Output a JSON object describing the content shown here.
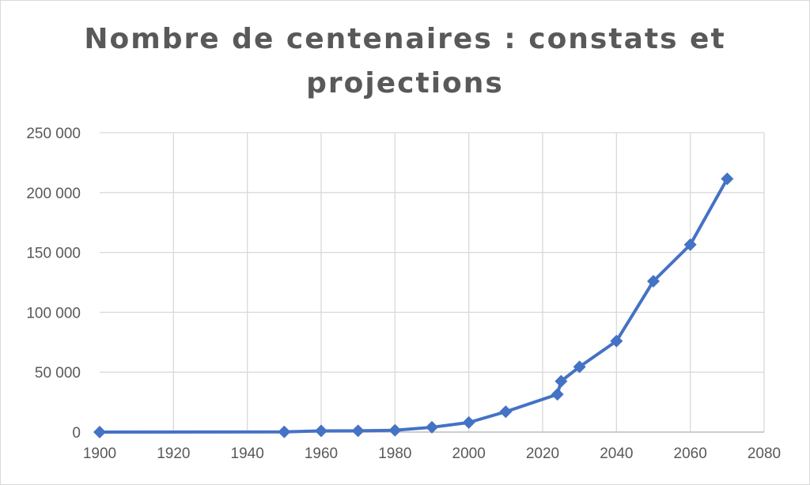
{
  "chart_data": {
    "type": "line",
    "title": "Nombre de centenaires : constats et projections",
    "xlabel": "",
    "ylabel": "",
    "xlim": [
      1900,
      2080
    ],
    "ylim": [
      0,
      250000
    ],
    "x_ticks": [
      "1900",
      "1920",
      "1940",
      "1960",
      "1980",
      "2000",
      "2020",
      "2040",
      "2060",
      "2080"
    ],
    "y_ticks": [
      "0",
      "50 000",
      "100 000",
      "150 000",
      "200 000",
      "250 000"
    ],
    "grid": true,
    "legend": "none",
    "series": [
      {
        "color": "#4472c4",
        "marker": "diamond",
        "x": [
          1900,
          1950,
          1960,
          1970,
          1980,
          1990,
          2000,
          2010,
          2024,
          2025,
          2030,
          2040,
          2050,
          2060,
          2070
        ],
        "y": [
          0,
          200,
          1000,
          1100,
          1500,
          4000,
          8000,
          17000,
          31500,
          42500,
          54500,
          76000,
          126000,
          156500,
          211500
        ]
      }
    ]
  }
}
